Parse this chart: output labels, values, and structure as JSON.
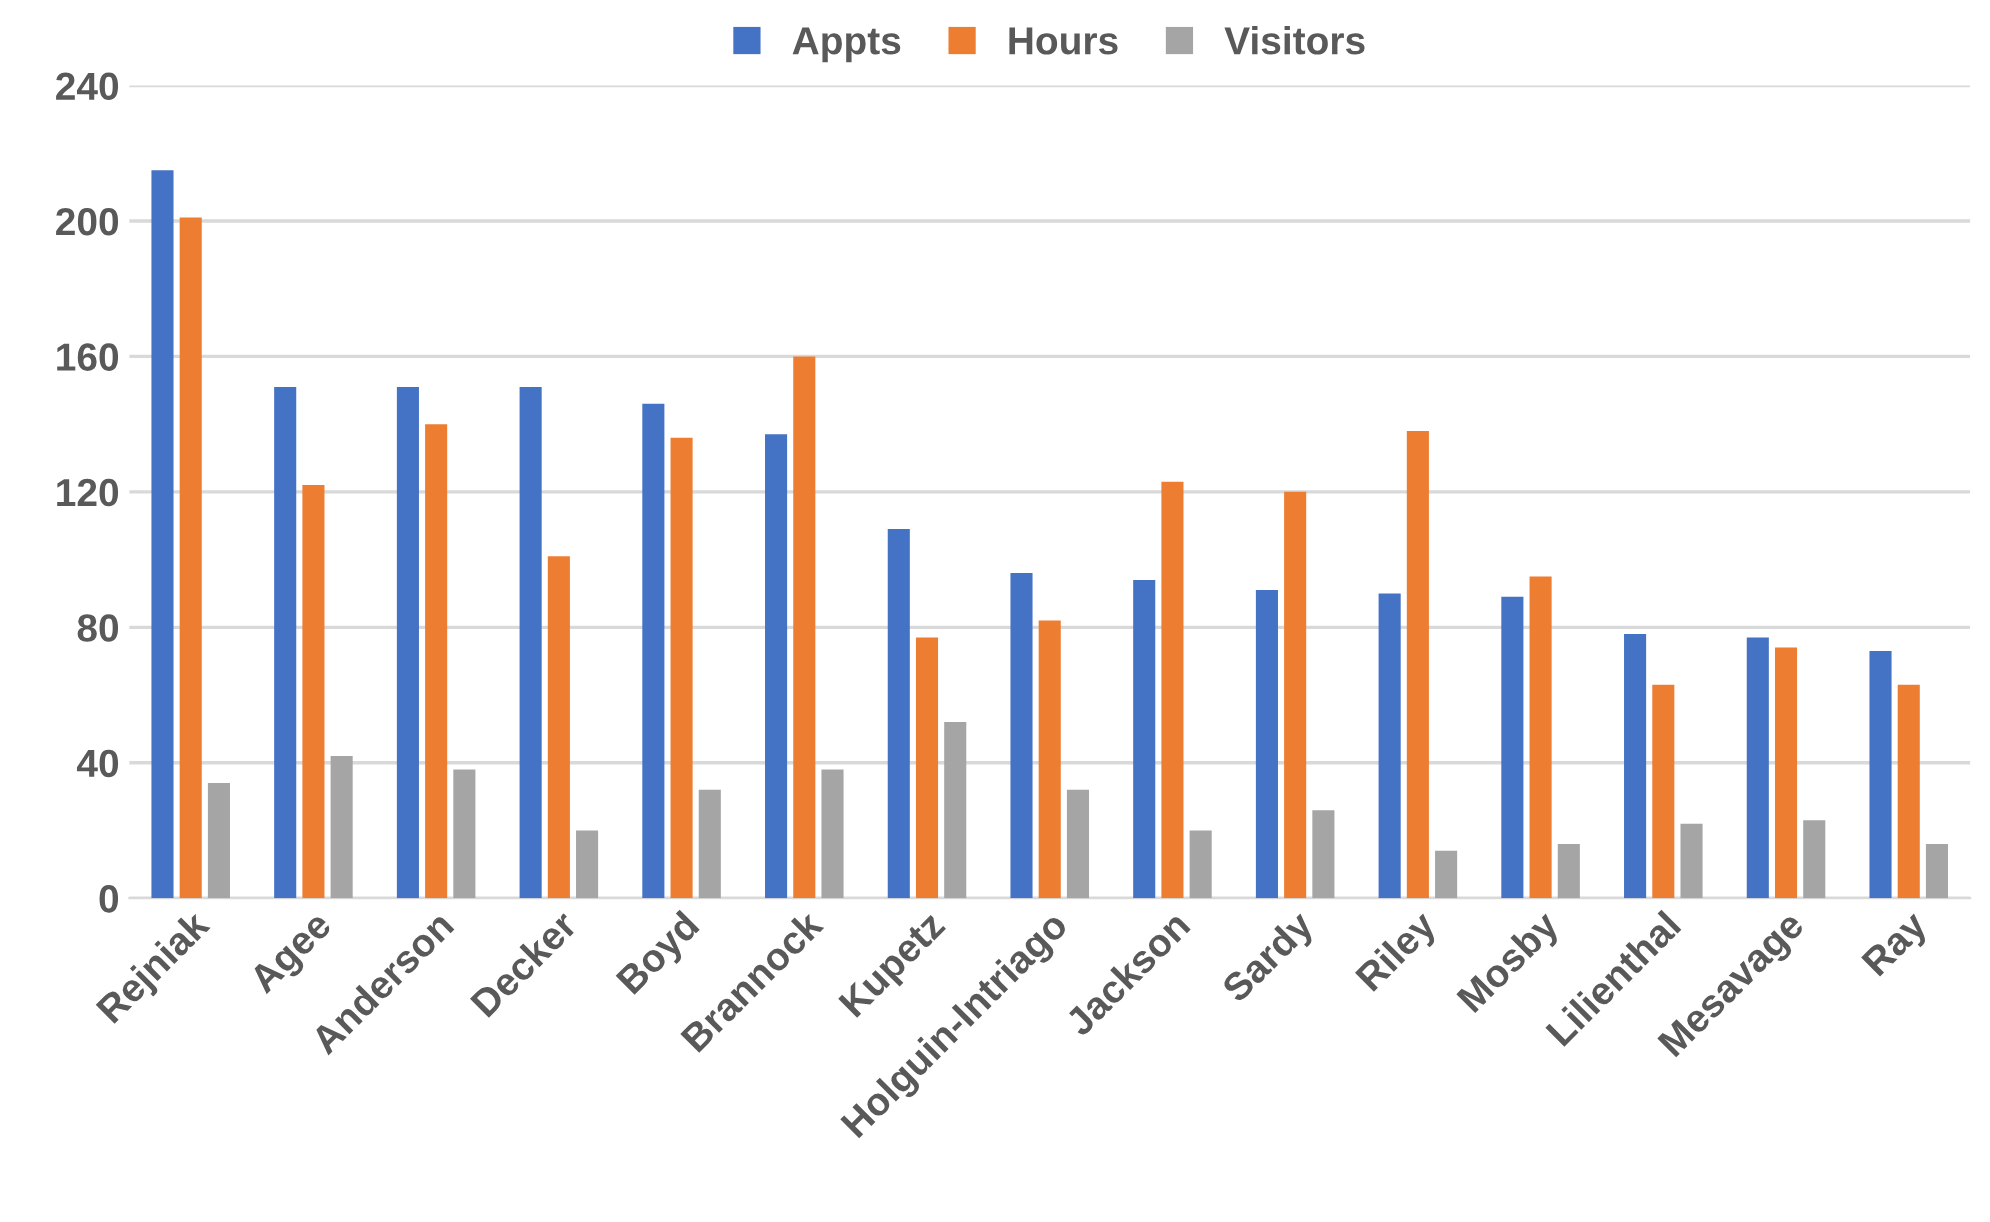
{
  "chart_data": {
    "type": "bar",
    "categories": [
      "Rejniak",
      "Agee",
      "Anderson",
      "Decker",
      "Boyd",
      "Brannock",
      "Kupetz",
      "Holguin-Intriago",
      "Jackson",
      "Sardy",
      "Riley",
      "Mosby",
      "Lilienthal",
      "Mesavage",
      "Ray"
    ],
    "series": [
      {
        "name": "Appts",
        "color": "#4472c4",
        "values": [
          215,
          151,
          151,
          151,
          146,
          137,
          109,
          96,
          94,
          91,
          90,
          89,
          78,
          77,
          73
        ]
      },
      {
        "name": "Hours",
        "color": "#ed7d31",
        "values": [
          201,
          122,
          140,
          101,
          136,
          160,
          77,
          82,
          123,
          120,
          138,
          95,
          63,
          74,
          63
        ]
      },
      {
        "name": "Visitors",
        "color": "#a5a5a5",
        "values": [
          34,
          42,
          38,
          20,
          32,
          38,
          52,
          32,
          20,
          26,
          14,
          16,
          22,
          23,
          16
        ]
      }
    ],
    "ylim": [
      0,
      240
    ],
    "yticks": [
      0,
      40,
      80,
      120,
      160,
      200,
      240
    ],
    "grid": "y",
    "legend": "top"
  }
}
